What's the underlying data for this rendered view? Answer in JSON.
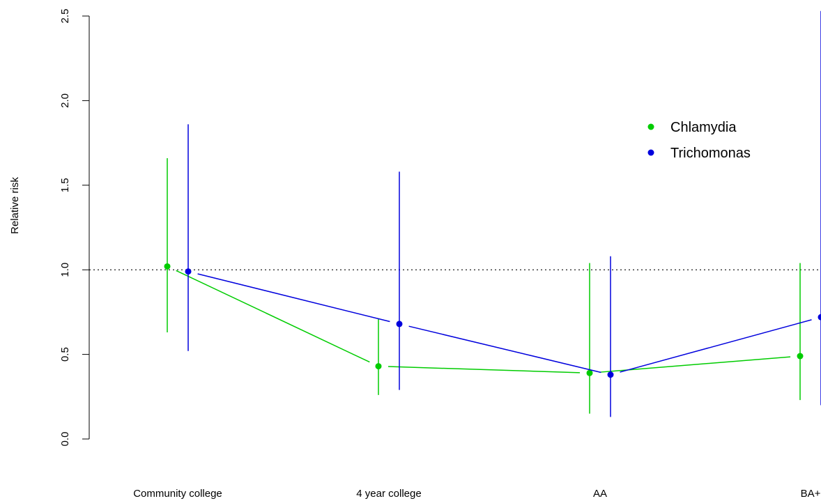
{
  "chart_data": {
    "type": "line",
    "title": "",
    "xlabel": "",
    "ylabel": "Relative risk",
    "categories": [
      "Community college",
      "4 year college",
      "AA",
      "BA+"
    ],
    "ylim": [
      0,
      2.5
    ],
    "y_ticks": [
      "0.0",
      "0.5",
      "1.0",
      "1.5",
      "2.0",
      "2.5"
    ],
    "reference_line": 1.0,
    "grid": false,
    "legend_position": "top-right",
    "series": [
      {
        "name": "Chlamydia",
        "color": "#00cc00",
        "values": [
          1.02,
          0.43,
          0.39,
          0.49
        ],
        "lower": [
          0.63,
          0.26,
          0.15,
          0.23
        ],
        "upper": [
          1.66,
          0.71,
          1.04,
          1.04
        ]
      },
      {
        "name": "Trichomonas",
        "color": "#0000dd",
        "values": [
          0.99,
          0.68,
          0.38,
          0.72
        ],
        "lower": [
          0.52,
          0.29,
          0.13,
          0.2
        ],
        "upper": [
          1.86,
          1.58,
          1.08,
          2.56
        ]
      }
    ]
  }
}
